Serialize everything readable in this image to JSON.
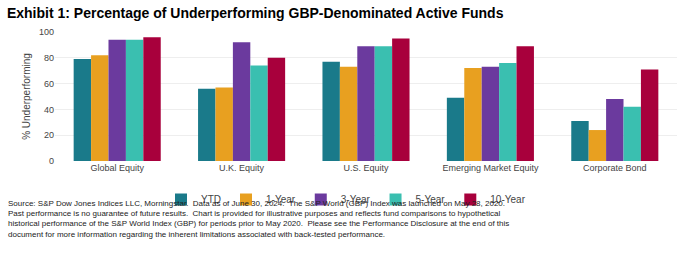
{
  "chart_data": {
    "type": "bar",
    "title": "Exhibit 1: Percentage of Underperforming GBP-Denominated Active Funds",
    "ylabel": "% Underperforming",
    "categories": [
      "Global Equity",
      "U.K. Equity",
      "U.S. Equity",
      "Emerging Market Equity",
      "Corporate Bond"
    ],
    "series": [
      {
        "name": "YTD",
        "color": "#1a7a8a",
        "values": [
          79,
          56,
          77,
          49,
          31
        ]
      },
      {
        "name": "1-Year",
        "color": "#e8a020",
        "values": [
          82,
          57,
          73,
          72,
          24
        ]
      },
      {
        "name": "3-Year",
        "color": "#6b3a9e",
        "values": [
          94,
          92,
          89,
          73,
          48
        ]
      },
      {
        "name": "5-Year",
        "color": "#3abfb0",
        "values": [
          94,
          74,
          89,
          76,
          42
        ]
      },
      {
        "name": "10-Year",
        "color": "#a8003c",
        "values": [
          96,
          80,
          95,
          89,
          71
        ]
      }
    ],
    "ylim": [
      0,
      100
    ],
    "yticks": [
      0,
      20,
      40,
      60,
      80,
      100
    ],
    "grid": true,
    "legend": "bottom",
    "annotations": [
      "Source: S&P Dow Jones Indices LLC, Morningstar.  Data as of June 30, 2024.  The S&P World (GBP) Index was launched on May 28, 2020.",
      "Past performance is no guarantee of future results.  Chart is provided for illustrative purposes and reflects fund comparisons to hypothetical",
      "historical performance of the S&P World Index (GBP) for periods prior to May 2020.  Please see the Performance Disclosure at the end of this",
      "document for more information regarding the inherent limitations associated with back-tested performance."
    ]
  }
}
